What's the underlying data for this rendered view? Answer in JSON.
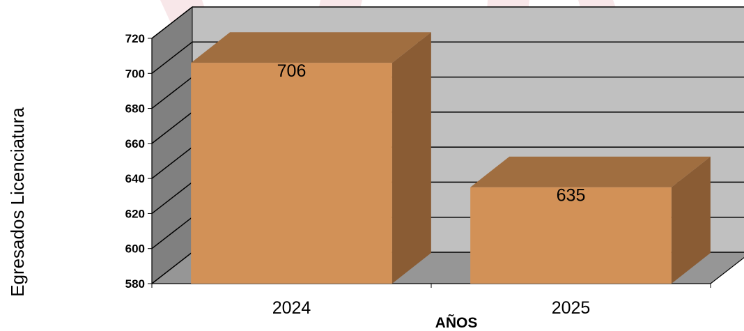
{
  "chart_data": {
    "type": "bar",
    "style": "3d-column",
    "categories": [
      "2024",
      "2025"
    ],
    "values": [
      706,
      635
    ],
    "data_labels": [
      "706",
      "635"
    ],
    "xlabel": "AÑOS",
    "ylabel": "Egresados Licenciatura",
    "ylim": [
      580,
      720
    ],
    "yticks": [
      "580",
      "600",
      "620",
      "640",
      "660",
      "680",
      "700",
      "720"
    ],
    "grid": true,
    "colors": {
      "bar_front": "#d29157",
      "bar_top": "#a06e40",
      "bar_side": "#8a5c34",
      "wall_back": "#c0c0c0",
      "wall_side": "#808080",
      "floor": "#969696",
      "watermark": "#e8b0b8"
    }
  }
}
